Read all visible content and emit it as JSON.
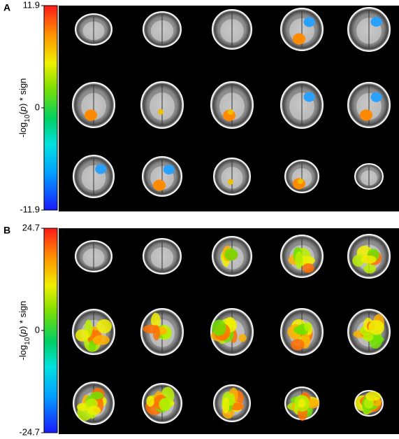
{
  "panels": [
    {
      "label": "A",
      "axis_label": [
        "-log",
        "10",
        "(",
        "p",
        ") * sign"
      ],
      "colorbar": {
        "ylim": [
          -11.9,
          11.9
        ],
        "yticks": [
          -11.9,
          0,
          11.9
        ]
      }
    },
    {
      "label": "B",
      "axis_label": [
        "-log",
        "10",
        "(",
        "p",
        ") * sign"
      ],
      "colorbar": {
        "ylim": [
          -24.7,
          24.7
        ],
        "yticks": [
          -24.7,
          0,
          24.7
        ]
      }
    }
  ]
}
